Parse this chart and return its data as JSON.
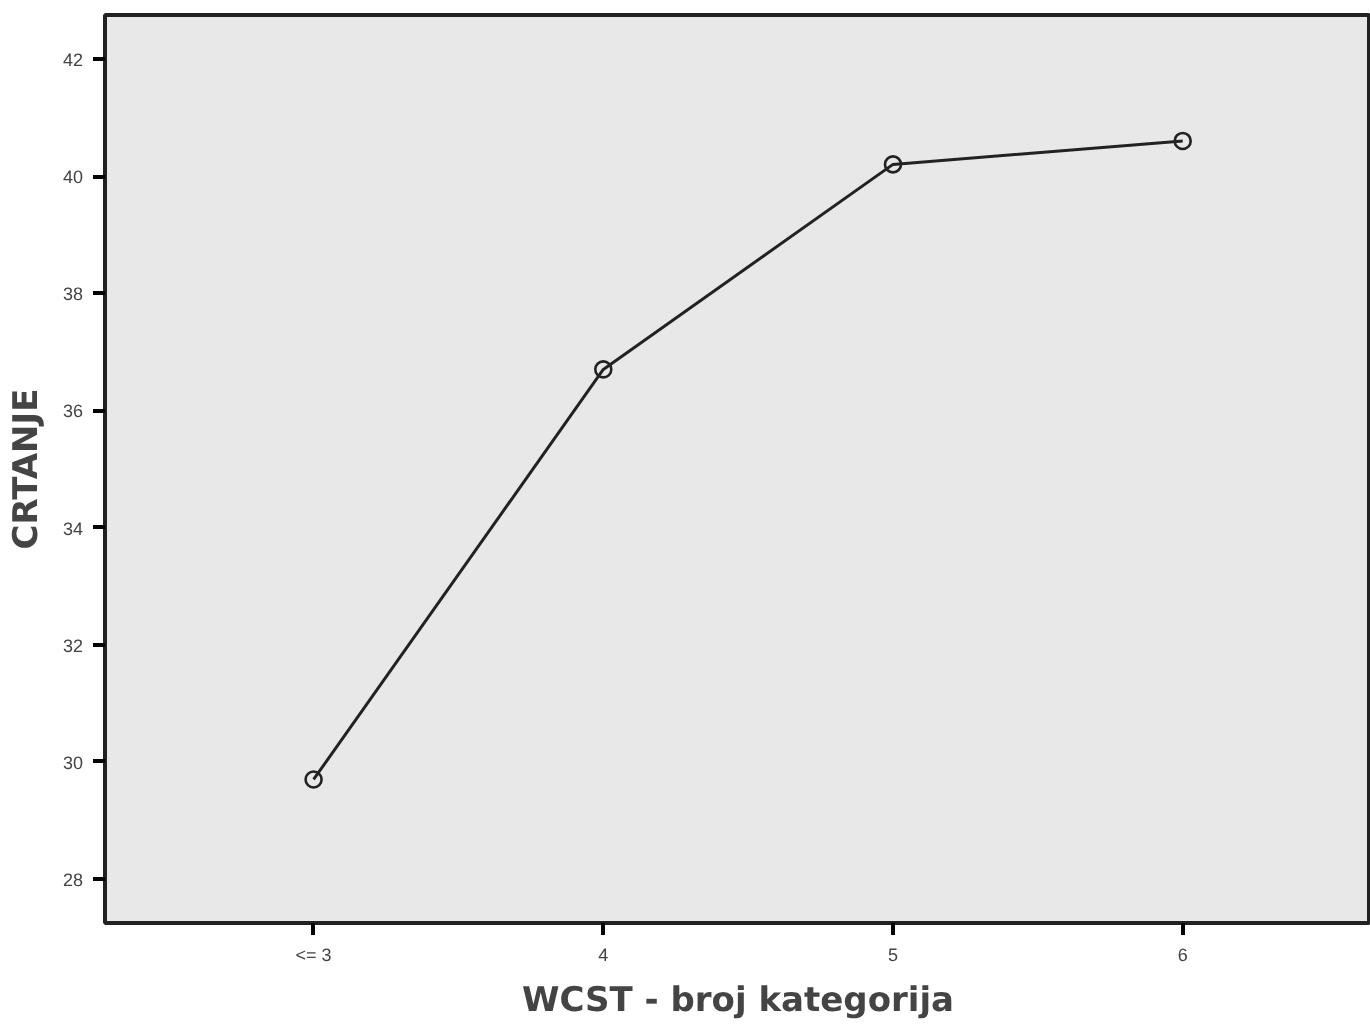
{
  "chart_data": {
    "type": "line",
    "xlabel": "WCST - broj kategorija",
    "ylabel": "CRTANJE",
    "categories": [
      "<= 3",
      "4",
      "5",
      "6"
    ],
    "values": [
      29.7,
      36.7,
      40.2,
      40.6
    ],
    "color": "#222222",
    "marker": "circle",
    "ylim": [
      27.25,
      42.75
    ],
    "yticks": [
      28,
      30,
      32,
      34,
      36,
      38,
      40,
      42
    ],
    "grid": false
  }
}
